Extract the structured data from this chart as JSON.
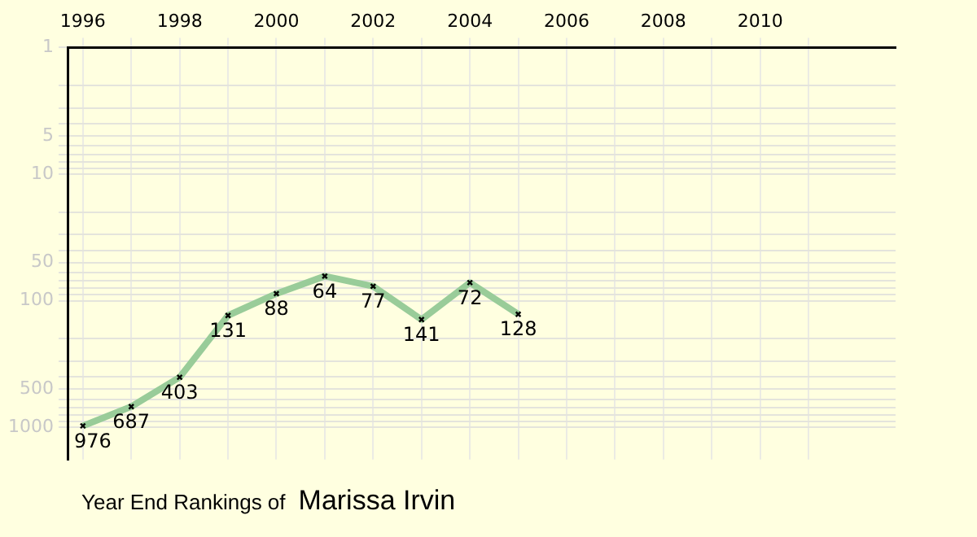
{
  "chart_data": {
    "type": "line",
    "title": "Year End Rankings of",
    "subtitle": "Marissa Irvin",
    "x": [
      1996,
      1997,
      1998,
      1999,
      2000,
      2001,
      2002,
      2003,
      2004,
      2005
    ],
    "series": [
      {
        "color": "#99cc99",
        "values": [
          976,
          687,
          403,
          131,
          88,
          64,
          77,
          141,
          72,
          128
        ]
      }
    ],
    "xlim": [
      1995.7,
      2012.8
    ],
    "xticks": [
      1996,
      {
        "value": 1997,
        "label": null
      },
      1998,
      {
        "value": 1999,
        "label": null
      },
      2000,
      {
        "value": 2001,
        "label": null
      },
      2002,
      {
        "value": 2003,
        "label": null
      },
      2004,
      {
        "value": 2005,
        "label": null
      },
      2006,
      {
        "value": 2007,
        "label": null
      },
      2008,
      {
        "value": 2009,
        "label": null
      },
      2010,
      {
        "value": 2011,
        "label": null
      }
    ],
    "ylim": [
      1800,
      1
    ],
    "log": true,
    "yticks": [
      1,
      {
        "value": 2,
        "label": null
      },
      {
        "value": 3,
        "label": null
      },
      {
        "value": 4,
        "label": null
      },
      5,
      {
        "value": 6,
        "label": null
      },
      {
        "value": 7,
        "label": null
      },
      {
        "value": 8,
        "label": null
      },
      {
        "value": 9,
        "label": null
      },
      10,
      {
        "value": 20,
        "label": null
      },
      {
        "value": 30,
        "label": null
      },
      {
        "value": 40,
        "label": null
      },
      50,
      {
        "value": 60,
        "label": null
      },
      {
        "value": 70,
        "label": null
      },
      {
        "value": 80,
        "label": null
      },
      {
        "value": 90,
        "label": null
      },
      100,
      {
        "value": 200,
        "label": null
      },
      {
        "value": 300,
        "label": null
      },
      {
        "value": 400,
        "label": null
      },
      500,
      {
        "value": 600,
        "label": null
      },
      {
        "value": 700,
        "label": null
      },
      {
        "value": 800,
        "label": null
      },
      {
        "value": 900,
        "label": null
      },
      1000
    ],
    "grid": true,
    "marker": "cross",
    "line_style": "solid",
    "data_labels": true,
    "legend": false
  }
}
